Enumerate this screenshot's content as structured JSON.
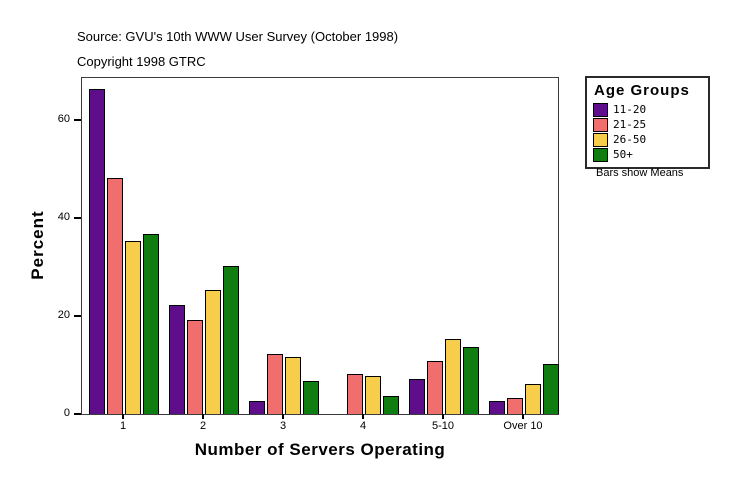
{
  "header": {
    "source": "Source: GVU's 10th WWW User Survey (October 1998)",
    "copyright": "Copyright 1998 GTRC"
  },
  "chart_data": {
    "type": "bar",
    "title": "",
    "xlabel": "Number of Servers Operating",
    "ylabel": "Percent",
    "categories": [
      "1",
      "2",
      "3",
      "4",
      "5-10",
      "Over 10"
    ],
    "series": [
      {
        "name": "11-20",
        "color": "#5E0D8B",
        "values": [
          66,
          22,
          2.5,
          0,
          7,
          2.5
        ]
      },
      {
        "name": "21-25",
        "color": "#F06E6E",
        "values": [
          48,
          19,
          12,
          8,
          10.5,
          3
        ]
      },
      {
        "name": "26-50",
        "color": "#F6CE4C",
        "values": [
          35,
          25,
          11.5,
          7.5,
          15,
          6
        ]
      },
      {
        "name": "50+",
        "color": "#107D10",
        "values": [
          36.5,
          30,
          6.5,
          3.5,
          13.5,
          10
        ]
      }
    ],
    "ylim": [
      0,
      68.5
    ],
    "yticks": [
      0,
      20,
      40,
      60
    ],
    "grid": false,
    "legend_position": "right",
    "legend_title": "Age Groups",
    "legend_note": "Bars show Means",
    "units": "percent"
  }
}
